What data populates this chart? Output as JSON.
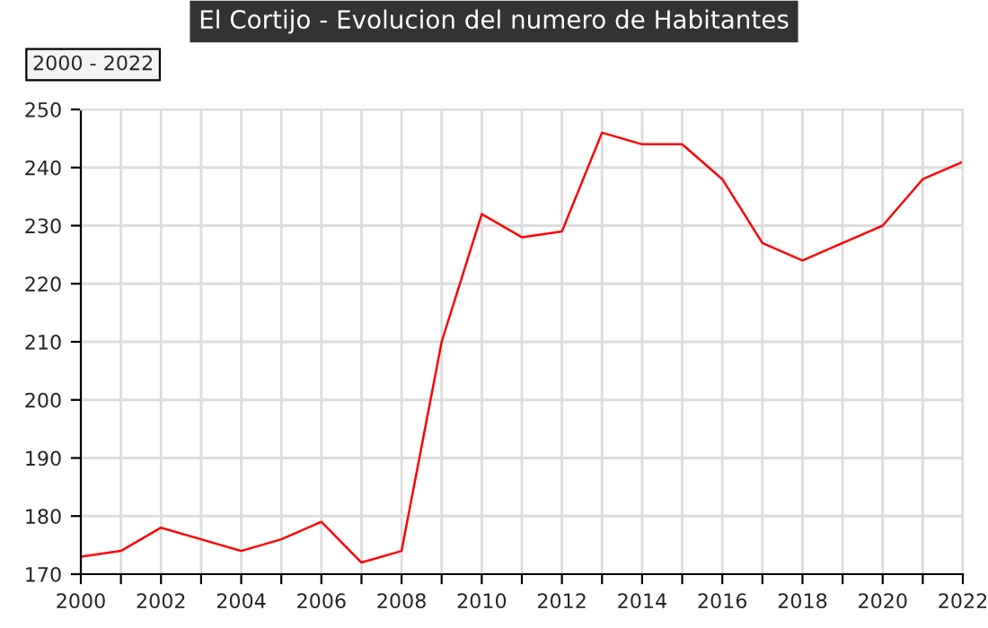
{
  "chart_data": {
    "type": "line",
    "title": "El Cortijo - Evolucion del numero de Habitantes",
    "annotations": [
      "2000 - 2022"
    ],
    "x": [
      2000,
      2001,
      2002,
      2003,
      2004,
      2005,
      2006,
      2007,
      2008,
      2009,
      2010,
      2011,
      2012,
      2013,
      2014,
      2015,
      2016,
      2017,
      2018,
      2019,
      2020,
      2021,
      2022
    ],
    "series": [
      {
        "color": "#ff0000",
        "values": [
          173,
          174,
          178,
          176,
          174,
          176,
          179,
          172,
          174,
          210,
          232,
          228,
          229,
          246,
          244,
          244,
          238,
          227,
          224,
          227,
          230,
          238,
          241
        ]
      }
    ],
    "xlim": [
      2000,
      2022
    ],
    "xticks": [
      2000,
      {
        "value": 2001,
        "label": null
      },
      2002,
      {
        "value": 2003,
        "label": null
      },
      2004,
      {
        "value": 2005,
        "label": null
      },
      2006,
      {
        "value": 2007,
        "label": null
      },
      2008,
      {
        "value": 2009,
        "label": null
      },
      2010,
      {
        "value": 2011,
        "label": null
      },
      2012,
      {
        "value": 2013,
        "label": null
      },
      2014,
      {
        "value": 2015,
        "label": null
      },
      2016,
      {
        "value": 2017,
        "label": null
      },
      2018,
      {
        "value": 2019,
        "label": null
      },
      2020,
      {
        "value": 2021,
        "label": null
      },
      2022
    ],
    "ylim": [
      170,
      250
    ],
    "yticks": [
      170,
      180,
      190,
      200,
      210,
      220,
      230,
      240,
      250
    ],
    "grid": true,
    "marker": "none",
    "line_style": "solid"
  }
}
